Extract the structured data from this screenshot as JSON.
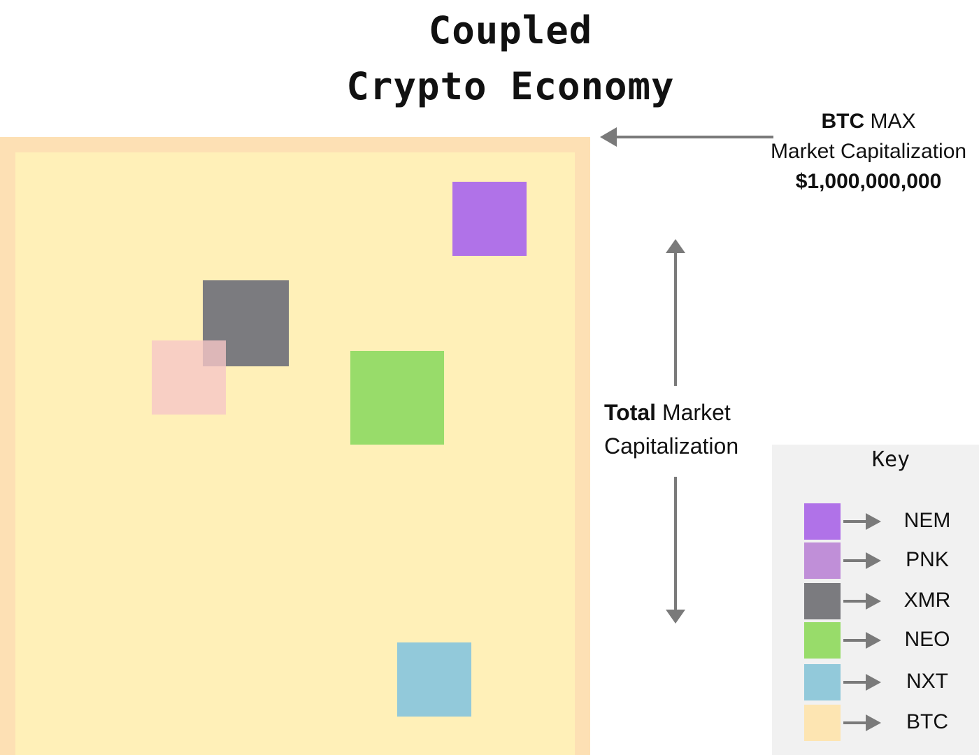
{
  "title": {
    "line1": "Coupled",
    "line2": "Crypto Economy"
  },
  "btc_max": {
    "coin": "BTC",
    "max": "MAX",
    "line2": "Market Capitalization",
    "value": "$1,000,000,000"
  },
  "total_cap": {
    "bold": "Total",
    "rest1": "Market",
    "line2": "Capitalization"
  },
  "key": {
    "title": "Key",
    "items": [
      {
        "label": "NEM",
        "color": "#b072e8"
      },
      {
        "label": "PNK",
        "color": "#c08fd8"
      },
      {
        "label": "XMR",
        "color": "#7b7b7f"
      },
      {
        "label": "NEO",
        "color": "#98dc6a"
      },
      {
        "label": "NXT",
        "color": "#92c9da"
      },
      {
        "label": "BTC",
        "color": "#fde5b2"
      }
    ]
  },
  "colors": {
    "btc_fill": "#fff0b8",
    "btc_border": "#fde0b4",
    "nem": "#b072e8",
    "xmr": "#7b7b7f",
    "pnk": "#f6c7c7",
    "neo": "#98dc6a",
    "nxt": "#92c9da",
    "arrow": "#7a7a7a"
  }
}
